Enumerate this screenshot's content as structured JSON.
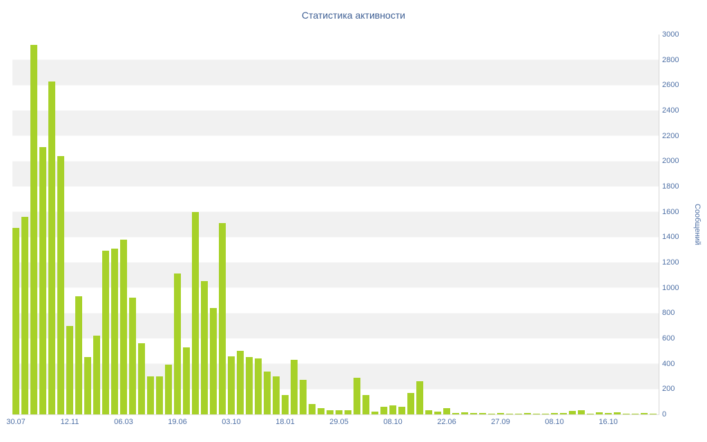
{
  "chart_data": {
    "type": "bar",
    "title": "Статистика активности",
    "xlabel": "",
    "ylabel": "Сообщений",
    "ylim": [
      0,
      3000
    ],
    "grid": "horizontal-bands",
    "legend": "none",
    "bar_color": "#a7d129",
    "stripe_color": "#f1f1f1",
    "axis_text_color": "#4d6fa5",
    "title_color": "#3e5f94",
    "y_ticks": [
      0,
      200,
      400,
      600,
      800,
      1000,
      1200,
      1400,
      1600,
      1800,
      2000,
      2200,
      2400,
      2600,
      2800,
      3000
    ],
    "x_tick_labels": [
      "30.07",
      "12.11",
      "06.03",
      "19.06",
      "03.10",
      "18.01",
      "29.05",
      "08.10",
      "22.06",
      "27.09",
      "08.10",
      "16.10"
    ],
    "x_tick_every": 6,
    "values": [
      1470,
      1560,
      2920,
      2110,
      2630,
      2040,
      700,
      930,
      450,
      620,
      1290,
      1310,
      1380,
      920,
      560,
      300,
      300,
      390,
      1110,
      530,
      1600,
      1050,
      840,
      1510,
      460,
      500,
      450,
      440,
      340,
      300,
      150,
      430,
      270,
      80,
      50,
      30,
      30,
      30,
      290,
      150,
      20,
      60,
      70,
      60,
      170,
      260,
      30,
      20,
      50,
      10,
      15,
      10,
      10,
      5,
      10,
      5,
      5,
      10,
      5,
      5,
      10,
      10,
      25,
      35,
      5,
      15,
      10,
      15,
      5,
      5,
      10,
      5
    ]
  }
}
